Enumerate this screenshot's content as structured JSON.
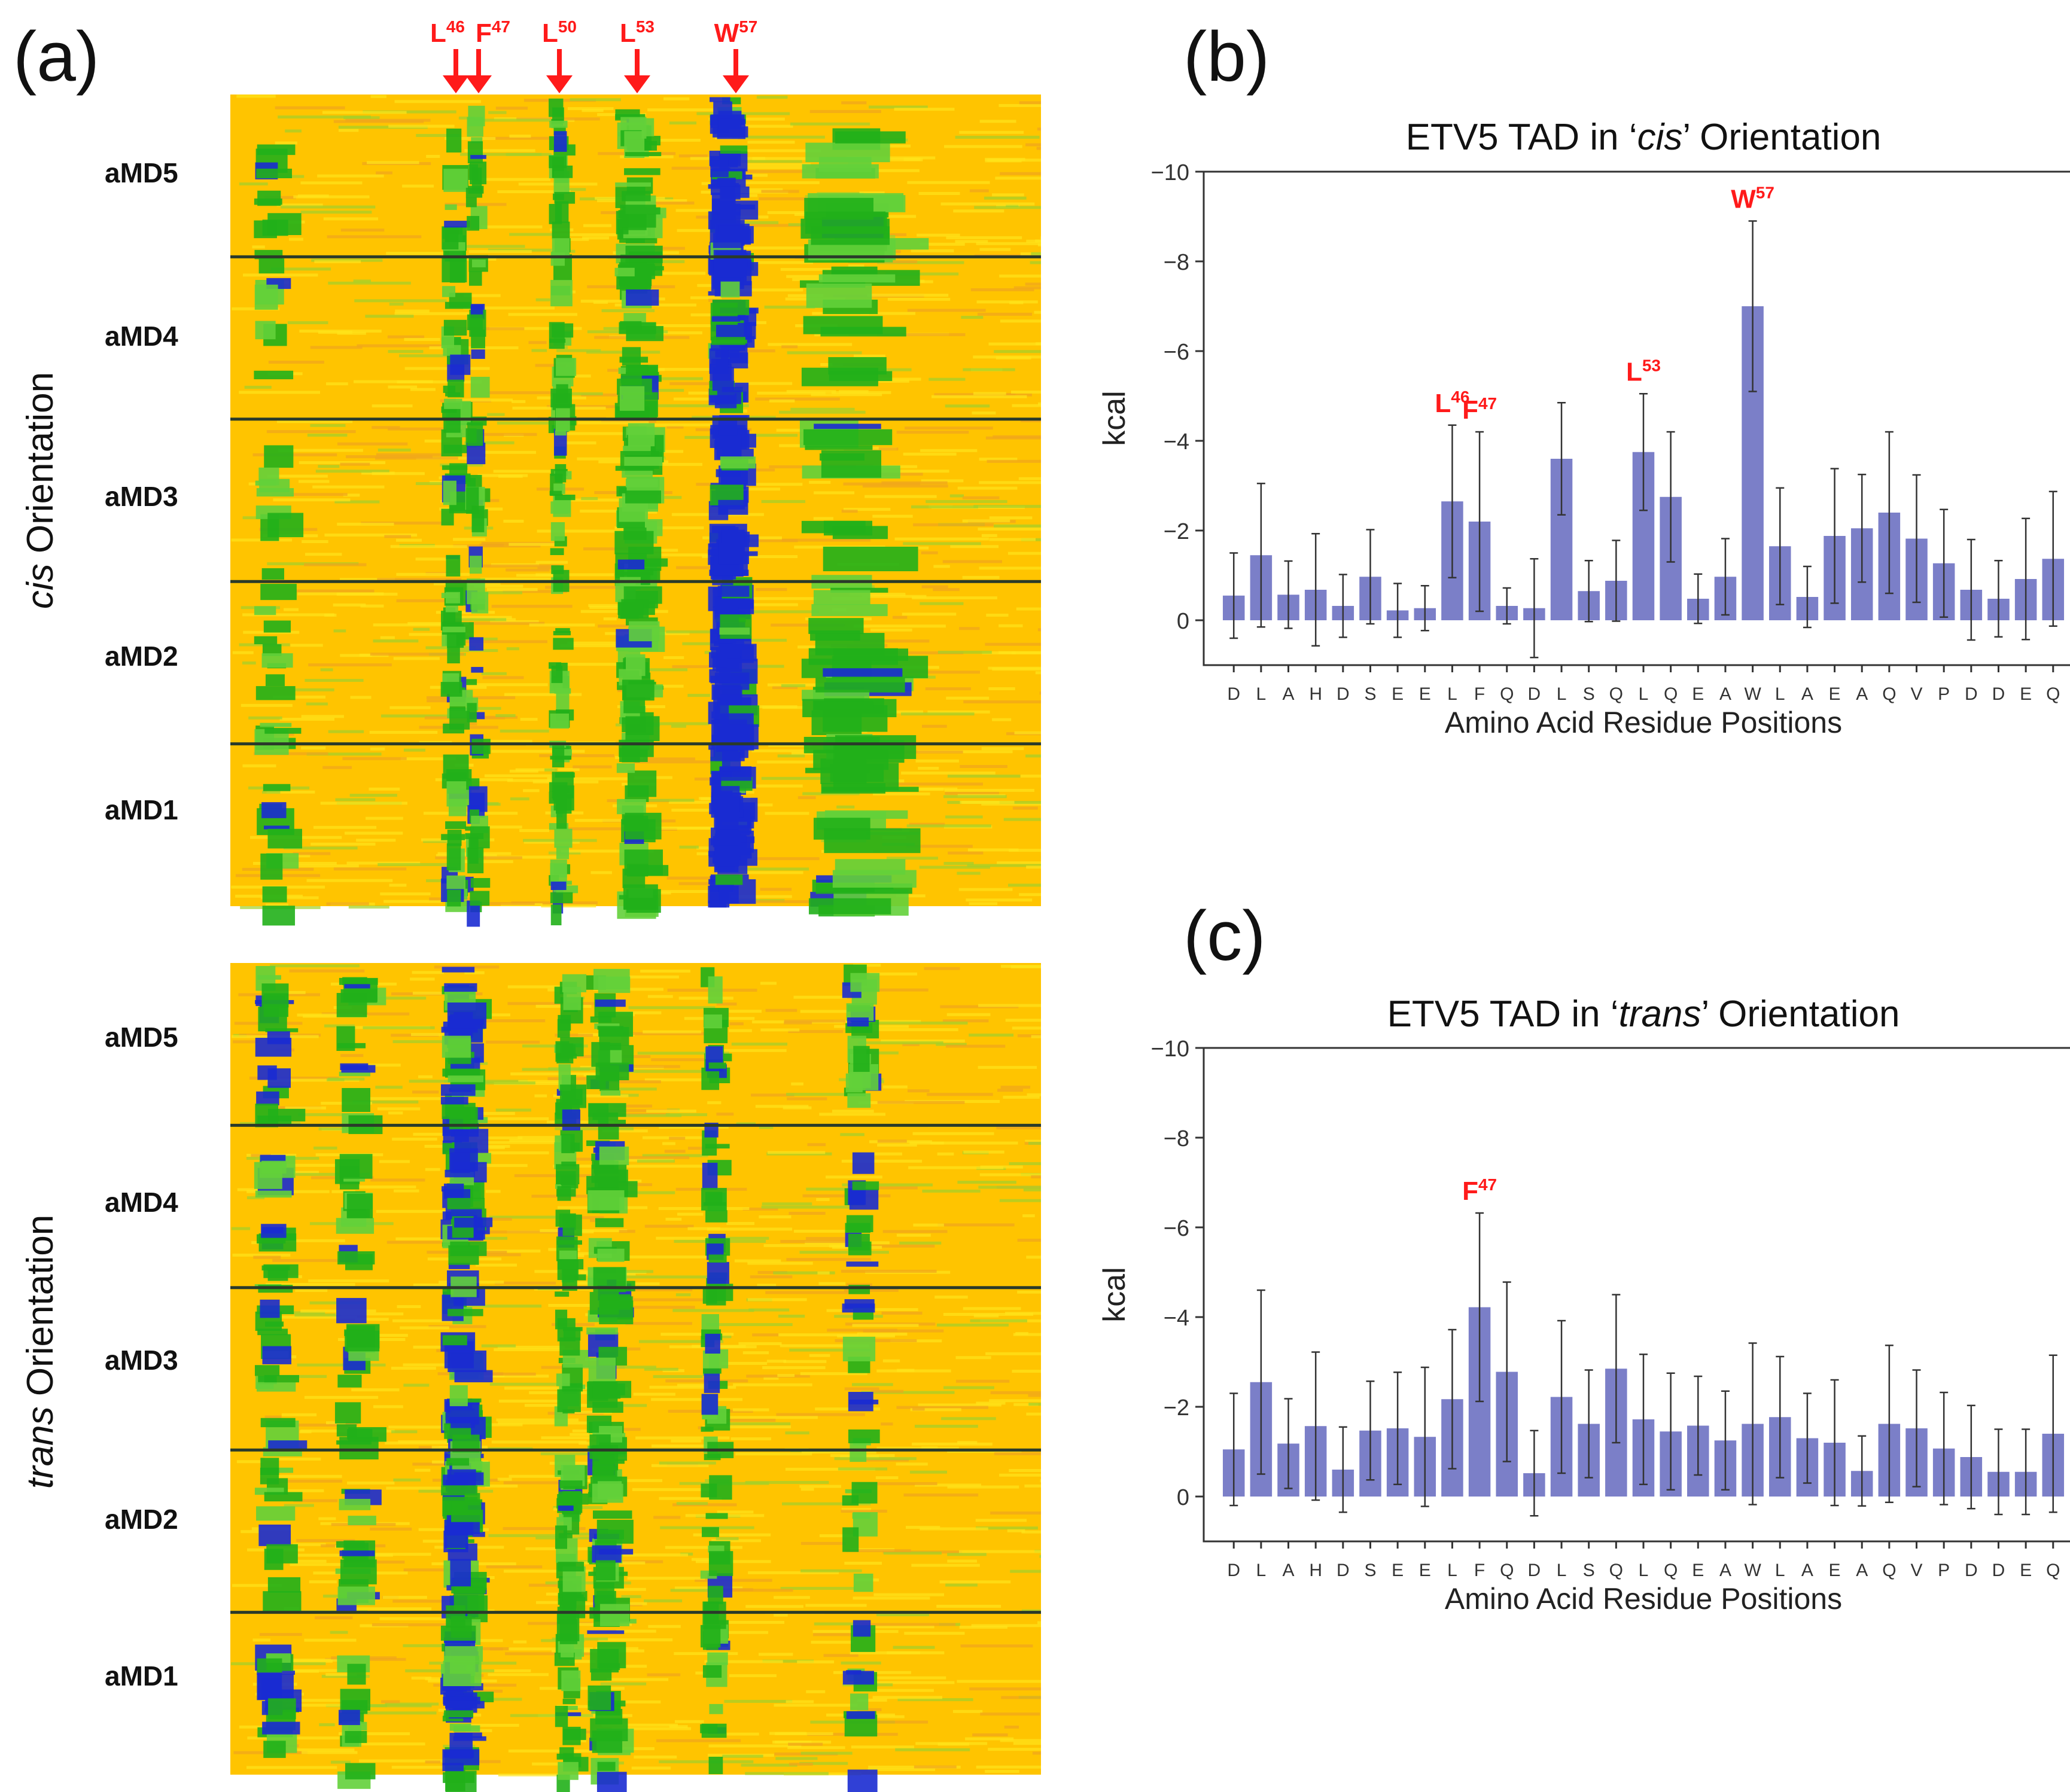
{
  "panels": {
    "a": {
      "label": "(a)",
      "cis_orientation_label": {
        "italic": "cis",
        "rest": " Orientation"
      },
      "trans_orientation_label": {
        "italic": "trans",
        "rest": " Orientation"
      },
      "block_labels": [
        "aMD5",
        "aMD4",
        "aMD3",
        "aMD2",
        "aMD1"
      ],
      "top_markers": [
        {
          "letter": "L",
          "sup": "46"
        },
        {
          "letter": "F",
          "sup": "47"
        },
        {
          "letter": "L",
          "sup": "50"
        },
        {
          "letter": "L",
          "sup": "53"
        },
        {
          "letter": "W",
          "sup": "57"
        }
      ]
    },
    "b": {
      "label": "(b)"
    },
    "c": {
      "label": "(c)"
    }
  },
  "colors": {
    "bar": "#7b7fc8",
    "highlight": "#ff1a1a",
    "heat_low": "#ffc400",
    "heat_mid": "#21b019",
    "heat_high": "#1a2bd1",
    "separator": "#2a3a2a"
  },
  "chart_data": [
    {
      "id": "b",
      "type": "bar",
      "title": {
        "prefix": "ETV5 TAD in ‘",
        "italic": "cis",
        "suffix": "’ Orientation"
      },
      "xlabel": "Amino Acid Residue Positions",
      "ylabel": "kcal",
      "ylim": [
        1,
        -10
      ],
      "yticks": [
        0,
        -2,
        -4,
        -6,
        -8,
        -10
      ],
      "categories": [
        "D",
        "L",
        "A",
        "H",
        "D",
        "S",
        "E",
        "E",
        "L",
        "F",
        "Q",
        "D",
        "L",
        "S",
        "Q",
        "L",
        "Q",
        "E",
        "A",
        "W",
        "L",
        "A",
        "E",
        "A",
        "Q",
        "V",
        "P",
        "D",
        "D",
        "E",
        "Q"
      ],
      "values": [
        -0.55,
        -1.45,
        -0.57,
        -0.68,
        -0.32,
        -0.97,
        -0.22,
        -0.27,
        -2.65,
        -2.2,
        -0.32,
        -0.27,
        -3.6,
        -0.65,
        -0.88,
        -3.75,
        -2.75,
        -0.48,
        -0.97,
        -7.0,
        -1.65,
        -0.52,
        -1.88,
        -2.05,
        -2.4,
        -1.82,
        -1.27,
        -0.68,
        -0.48,
        -0.92,
        -1.37
      ],
      "errors": [
        0.95,
        1.6,
        0.75,
        1.25,
        0.7,
        1.05,
        0.6,
        0.5,
        1.7,
        2.0,
        0.4,
        1.1,
        1.25,
        0.68,
        0.9,
        1.3,
        1.45,
        0.55,
        0.85,
        1.9,
        1.3,
        0.68,
        1.5,
        1.2,
        1.8,
        1.42,
        1.2,
        1.12,
        0.85,
        1.35,
        1.5
      ],
      "annotations": [
        {
          "index": 8,
          "text": "L",
          "sup": "46"
        },
        {
          "index": 9,
          "text": "F",
          "sup": "47"
        },
        {
          "index": 15,
          "text": "L",
          "sup": "53"
        },
        {
          "index": 19,
          "text": "W",
          "sup": "57"
        }
      ]
    },
    {
      "id": "c",
      "type": "bar",
      "title": {
        "prefix": "ETV5 TAD in ‘",
        "italic": "trans",
        "suffix": "’ Orientation"
      },
      "xlabel": "Amino Acid Residue Positions",
      "ylabel": "kcal",
      "ylim": [
        1,
        -10
      ],
      "yticks": [
        0,
        -2,
        -4,
        -6,
        -8,
        -10
      ],
      "categories": [
        "D",
        "L",
        "A",
        "H",
        "D",
        "S",
        "E",
        "E",
        "L",
        "F",
        "Q",
        "D",
        "L",
        "S",
        "Q",
        "L",
        "Q",
        "E",
        "A",
        "W",
        "L",
        "A",
        "E",
        "A",
        "Q",
        "V",
        "P",
        "D",
        "D",
        "E",
        "Q"
      ],
      "values": [
        -1.05,
        -2.55,
        -1.18,
        -1.57,
        -0.6,
        -1.47,
        -1.52,
        -1.33,
        -2.17,
        -4.22,
        -2.78,
        -0.52,
        -2.22,
        -1.62,
        -2.85,
        -1.72,
        -1.45,
        -1.58,
        -1.25,
        -1.62,
        -1.77,
        -1.3,
        -1.2,
        -0.57,
        -1.62,
        -1.52,
        -1.07,
        -0.88,
        -0.55,
        -0.55,
        -1.4
      ],
      "errors": [
        1.25,
        2.05,
        1.0,
        1.65,
        0.95,
        1.1,
        1.25,
        1.55,
        1.55,
        2.1,
        2.0,
        0.95,
        1.7,
        1.2,
        1.65,
        1.45,
        1.3,
        1.1,
        1.1,
        1.8,
        1.35,
        1.0,
        1.4,
        0.78,
        1.75,
        1.3,
        1.25,
        1.15,
        0.95,
        0.95,
        1.75
      ],
      "annotations": [
        {
          "index": 9,
          "text": "F",
          "sup": "47"
        }
      ]
    }
  ]
}
